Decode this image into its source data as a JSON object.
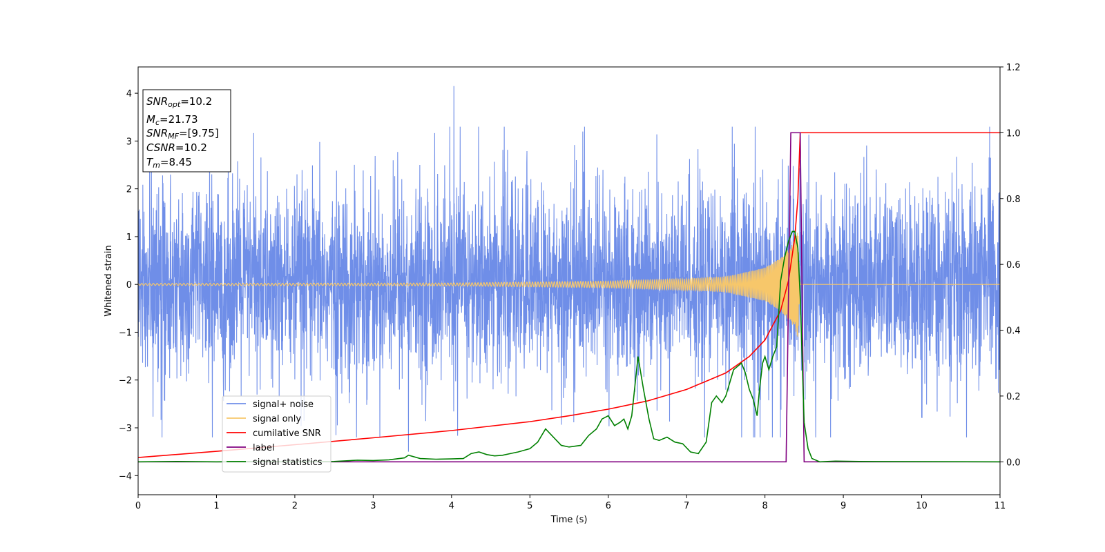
{
  "chart_data": {
    "type": "line",
    "xlabel": "Time (s)",
    "ylabel": "Whitened strain",
    "xlim": [
      0,
      11
    ],
    "ylim_left": [
      -4.4,
      4.55
    ],
    "ylim_right": [
      -0.1,
      1.2
    ],
    "x_ticks": [
      0,
      1,
      2,
      3,
      4,
      5,
      6,
      7,
      8,
      9,
      10,
      11
    ],
    "x_tick_labels": [
      "0",
      "1",
      "2",
      "3",
      "4",
      "5",
      "6",
      "7",
      "8",
      "9",
      "10",
      "11"
    ],
    "y_left_ticks": [
      -4,
      -3,
      -2,
      -1,
      0,
      1,
      2,
      3,
      4
    ],
    "y_left_tick_labels": [
      "−4",
      "−3",
      "−2",
      "−1",
      "0",
      "1",
      "2",
      "3",
      "4"
    ],
    "y_right_ticks": [
      0.0,
      0.2,
      0.4,
      0.6,
      0.8,
      1.0,
      1.2
    ],
    "y_right_tick_labels": [
      "0.0",
      "0.2",
      "0.4",
      "0.6",
      "0.8",
      "1.0",
      "1.2"
    ],
    "grid": false,
    "legend_position": "lower-left",
    "colors": {
      "signal_noise": "#6f8ee8",
      "signal_only": "#f7c76a",
      "cumulative_snr": "#ff0000",
      "label": "#800080",
      "signal_statistics": "#008000"
    },
    "legend": [
      {
        "key": "signal_noise",
        "name": "signal+ noise"
      },
      {
        "key": "signal_only",
        "name": "signal only"
      },
      {
        "key": "cumulative_snr",
        "name": "cumilative SNR"
      },
      {
        "key": "label",
        "name": "label"
      },
      {
        "key": "signal_statistics",
        "name": "signal statistics"
      }
    ],
    "info_box": {
      "snr_opt_sym": "SNR",
      "snr_opt_sub": "opt",
      "snr_opt_val": "=10.2",
      "mc_sym": "M",
      "mc_sub": "c",
      "mc_val": "=21.73",
      "snr_mf_sym": "SNR",
      "snr_mf_sub": "MF",
      "snr_mf_val": "=[9.75]",
      "csnr_sym": "CSNR",
      "csnr_val": "=10.2",
      "tm_sym": "T",
      "tm_sub": "m",
      "tm_val": "=8.45"
    },
    "noise_envelope": {
      "typical_amplitude": 1.3,
      "peak_max": 4.15,
      "peak_min": -3.5,
      "time_span": [
        0,
        11
      ]
    },
    "signal_only": {
      "description_points": [
        [
          0,
          0.02
        ],
        [
          4,
          0.03
        ],
        [
          6,
          0.07
        ],
        [
          7,
          0.12
        ],
        [
          7.5,
          0.16
        ],
        [
          8,
          0.35
        ],
        [
          8.2,
          0.55
        ],
        [
          8.35,
          0.85
        ],
        [
          8.42,
          1.1
        ],
        [
          8.45,
          0
        ],
        [
          11,
          0
        ]
      ]
    },
    "cumulative_snr": {
      "axis": "right",
      "x": [
        0,
        1,
        2,
        3,
        4,
        5,
        5.5,
        6,
        6.5,
        7,
        7.5,
        7.8,
        8.0,
        8.2,
        8.3,
        8.38,
        8.42,
        8.45,
        11
      ],
      "y": [
        0.013,
        0.032,
        0.052,
        0.073,
        0.095,
        0.122,
        0.14,
        0.16,
        0.185,
        0.22,
        0.27,
        0.32,
        0.37,
        0.46,
        0.55,
        0.68,
        0.8,
        1.0,
        1.0
      ]
    },
    "label_series": {
      "axis": "right",
      "x": [
        0,
        8.27,
        8.33,
        8.45,
        8.5,
        11
      ],
      "y": [
        0,
        0,
        1.0,
        1.0,
        0,
        0
      ]
    },
    "signal_statistics": {
      "axis": "right",
      "x": [
        0,
        0.5,
        1,
        1.5,
        2,
        2.5,
        2.8,
        3.0,
        3.2,
        3.4,
        3.45,
        3.6,
        3.8,
        4.0,
        4.15,
        4.25,
        4.35,
        4.45,
        4.55,
        4.65,
        4.75,
        4.85,
        5.0,
        5.1,
        5.2,
        5.3,
        5.4,
        5.5,
        5.65,
        5.75,
        5.85,
        5.92,
        6.0,
        6.08,
        6.15,
        6.2,
        6.25,
        6.3,
        6.38,
        6.45,
        6.52,
        6.58,
        6.65,
        6.75,
        6.85,
        6.95,
        7.05,
        7.15,
        7.25,
        7.32,
        7.38,
        7.45,
        7.5,
        7.55,
        7.6,
        7.65,
        7.7,
        7.75,
        7.8,
        7.85,
        7.9,
        7.93,
        7.97,
        8.0,
        8.05,
        8.1,
        8.15,
        8.2,
        8.25,
        8.3,
        8.35,
        8.38,
        8.42,
        8.45,
        8.5,
        8.55,
        8.6,
        8.7,
        8.9,
        9.2,
        11
      ],
      "y": [
        0.0,
        0.001,
        0.0,
        0.001,
        0.0,
        0.001,
        0.005,
        0.004,
        0.006,
        0.012,
        0.02,
        0.01,
        0.008,
        0.009,
        0.01,
        0.025,
        0.03,
        0.022,
        0.018,
        0.02,
        0.025,
        0.03,
        0.04,
        0.06,
        0.1,
        0.075,
        0.05,
        0.045,
        0.05,
        0.08,
        0.1,
        0.13,
        0.14,
        0.11,
        0.12,
        0.13,
        0.1,
        0.14,
        0.32,
        0.22,
        0.13,
        0.07,
        0.065,
        0.075,
        0.06,
        0.055,
        0.03,
        0.025,
        0.06,
        0.18,
        0.2,
        0.18,
        0.2,
        0.24,
        0.28,
        0.29,
        0.3,
        0.27,
        0.22,
        0.19,
        0.14,
        0.22,
        0.3,
        0.32,
        0.28,
        0.32,
        0.35,
        0.55,
        0.62,
        0.67,
        0.7,
        0.7,
        0.65,
        0.5,
        0.12,
        0.04,
        0.01,
        0.0,
        0.002,
        0.001,
        0.0
      ]
    }
  }
}
